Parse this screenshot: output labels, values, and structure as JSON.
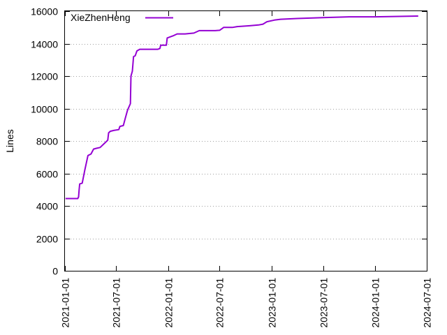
{
  "chart_data": {
    "type": "line",
    "ylabel": "Lines",
    "xlabel": "",
    "xlim": [
      "2021-01-01",
      "2024-07-01"
    ],
    "ylim": [
      0,
      16000
    ],
    "x_ticks": [
      "2021-01-01",
      "2021-07-01",
      "2022-01-01",
      "2022-07-01",
      "2023-01-01",
      "2023-07-01",
      "2024-01-01",
      "2024-07-01"
    ],
    "y_ticks": [
      0,
      2000,
      4000,
      6000,
      8000,
      10000,
      12000,
      14000,
      16000
    ],
    "grid": "horizontal-dotted",
    "legend_position": "top-left",
    "series": [
      {
        "name": "XieZhenHeng",
        "color": "#9400d3",
        "points": [
          [
            "2021-01-03",
            4450
          ],
          [
            "2021-02-15",
            4450
          ],
          [
            "2021-02-18",
            4550
          ],
          [
            "2021-02-20",
            5000
          ],
          [
            "2021-02-22",
            5350
          ],
          [
            "2021-03-03",
            5400
          ],
          [
            "2021-03-12",
            6200
          ],
          [
            "2021-03-23",
            7100
          ],
          [
            "2021-04-03",
            7200
          ],
          [
            "2021-04-12",
            7500
          ],
          [
            "2021-04-22",
            7550
          ],
          [
            "2021-05-05",
            7600
          ],
          [
            "2021-05-20",
            7850
          ],
          [
            "2021-06-01",
            8050
          ],
          [
            "2021-06-04",
            8500
          ],
          [
            "2021-06-10",
            8600
          ],
          [
            "2021-06-22",
            8650
          ],
          [
            "2021-07-10",
            8700
          ],
          [
            "2021-07-14",
            8900
          ],
          [
            "2021-07-26",
            8950
          ],
          [
            "2021-08-02",
            9400
          ],
          [
            "2021-08-10",
            9900
          ],
          [
            "2021-08-20",
            10300
          ],
          [
            "2021-08-22",
            12000
          ],
          [
            "2021-08-27",
            12300
          ],
          [
            "2021-08-31",
            13200
          ],
          [
            "2021-09-06",
            13250
          ],
          [
            "2021-09-12",
            13550
          ],
          [
            "2021-09-22",
            13650
          ],
          [
            "2021-10-15",
            13650
          ],
          [
            "2021-11-25",
            13650
          ],
          [
            "2021-12-02",
            13700
          ],
          [
            "2021-12-05",
            13900
          ],
          [
            "2021-12-25",
            13900
          ],
          [
            "2021-12-28",
            14350
          ],
          [
            "2022-01-05",
            14400
          ],
          [
            "2022-01-20",
            14500
          ],
          [
            "2022-02-01",
            14600
          ],
          [
            "2022-03-01",
            14600
          ],
          [
            "2022-04-01",
            14650
          ],
          [
            "2022-04-20",
            14800
          ],
          [
            "2022-05-01",
            14800
          ],
          [
            "2022-06-15",
            14800
          ],
          [
            "2022-07-01",
            14820
          ],
          [
            "2022-07-15",
            15000
          ],
          [
            "2022-08-15",
            15000
          ],
          [
            "2022-09-01",
            15050
          ],
          [
            "2022-10-15",
            15100
          ],
          [
            "2022-11-15",
            15150
          ],
          [
            "2022-12-01",
            15200
          ],
          [
            "2022-12-15",
            15350
          ],
          [
            "2023-01-10",
            15450
          ],
          [
            "2023-02-01",
            15500
          ],
          [
            "2023-04-01",
            15550
          ],
          [
            "2023-07-01",
            15600
          ],
          [
            "2023-10-01",
            15650
          ],
          [
            "2024-01-01",
            15650
          ],
          [
            "2024-06-01",
            15700
          ]
        ]
      }
    ]
  }
}
